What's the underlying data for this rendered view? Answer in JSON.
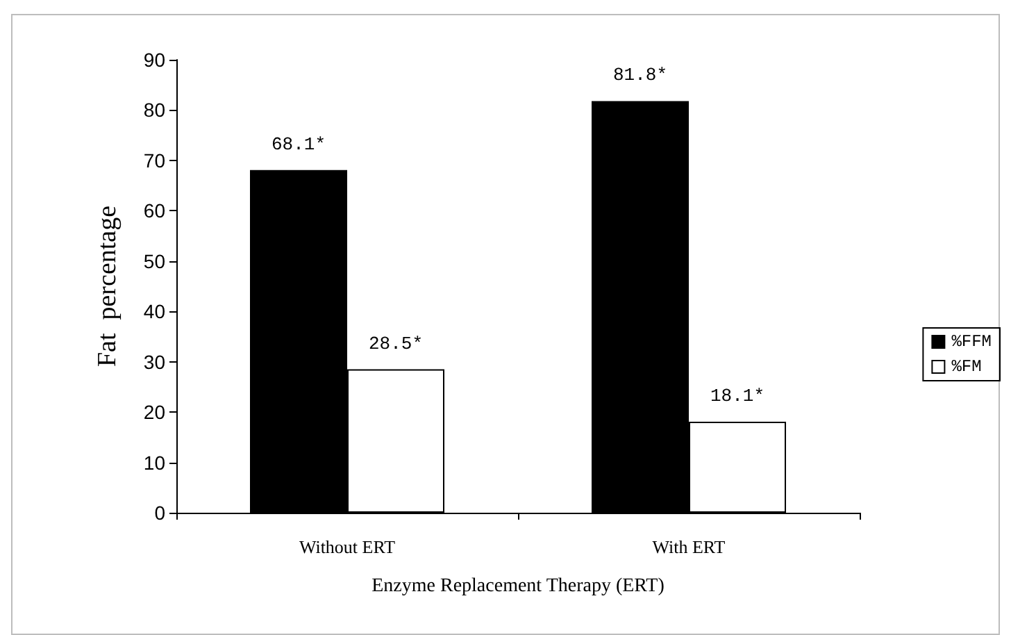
{
  "chart_data": {
    "type": "bar",
    "xlabel": "Enzyme Replacement Therapy (ERT)",
    "ylabel": "Fat  percentage",
    "categories": [
      "Without ERT",
      "With ERT"
    ],
    "series": [
      {
        "name": "%FFM",
        "color": "#000000",
        "values": [
          68.1,
          81.8
        ],
        "value_labels": [
          "68.1*",
          "81.8*"
        ]
      },
      {
        "name": "%FM",
        "color": "#ffffff",
        "values": [
          28.5,
          18.1
        ],
        "value_labels": [
          "28.5*",
          "18.1*"
        ]
      }
    ],
    "ylim": [
      0,
      90
    ],
    "yticks": [
      0,
      10,
      20,
      30,
      40,
      50,
      60,
      70,
      80,
      90
    ],
    "grid": false,
    "legend": "right"
  }
}
